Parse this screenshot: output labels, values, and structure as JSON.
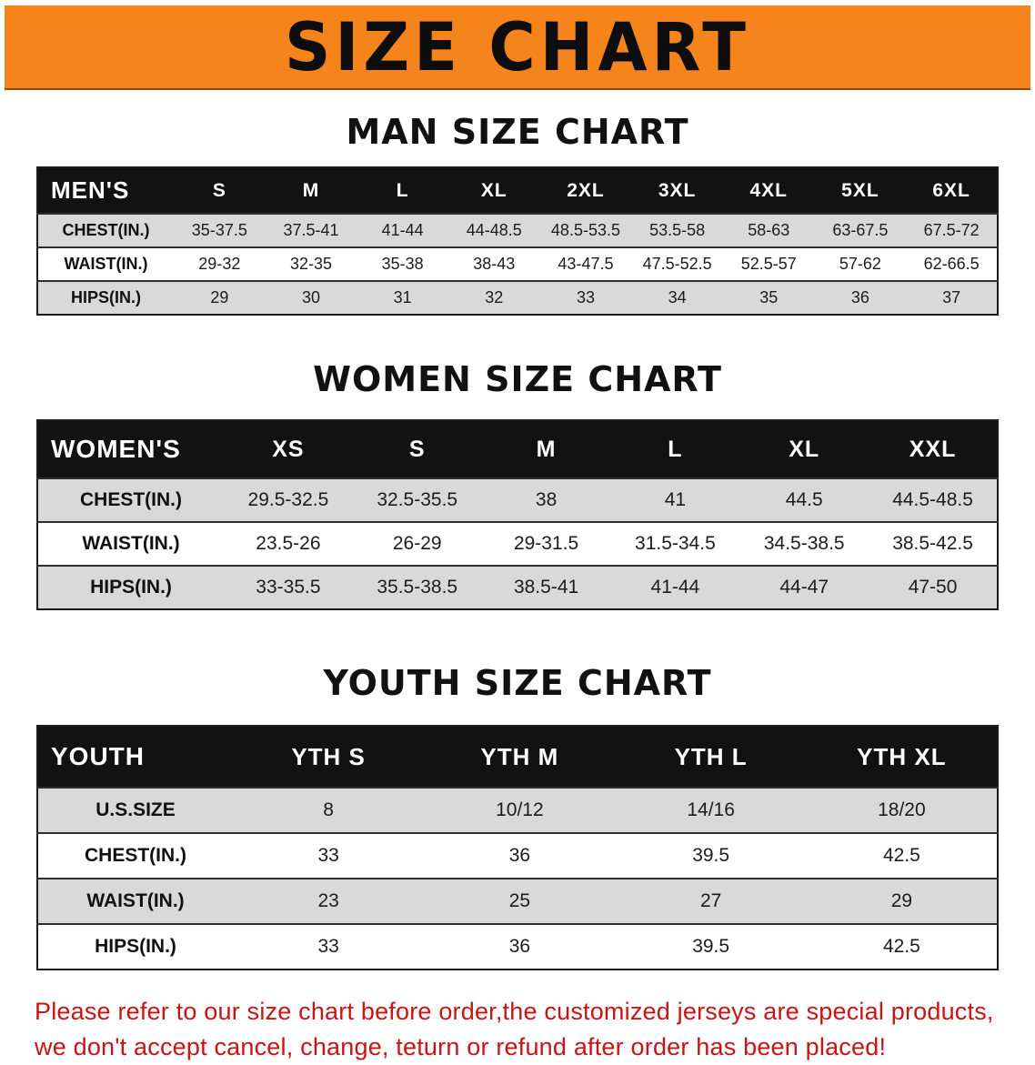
{
  "banner": {
    "title": "SIZE CHART"
  },
  "colors": {
    "banner_bg": "#f6841c",
    "header_bg": "#121212",
    "row_alt": "#d9d9d9",
    "note_red": "#c71414"
  },
  "sections": [
    {
      "heading": "MAN SIZE CHART",
      "table": {
        "header": [
          "MEN'S",
          "S",
          "M",
          "L",
          "XL",
          "2XL",
          "3XL",
          "4XL",
          "5XL",
          "6XL"
        ],
        "rows": [
          [
            "CHEST(IN.)",
            "35-37.5",
            "37.5-41",
            "41-44",
            "44-48.5",
            "48.5-53.5",
            "53.5-58",
            "58-63",
            "63-67.5",
            "67.5-72"
          ],
          [
            "WAIST(IN.)",
            "29-32",
            "32-35",
            "35-38",
            "38-43",
            "43-47.5",
            "47.5-52.5",
            "52.5-57",
            "57-62",
            "62-66.5"
          ],
          [
            "HIPS(IN.)",
            "29",
            "30",
            "31",
            "32",
            "33",
            "34",
            "35",
            "36",
            "37"
          ]
        ]
      }
    },
    {
      "heading": "WOMEN SIZE CHART",
      "table": {
        "header": [
          "WOMEN'S",
          "XS",
          "S",
          "M",
          "L",
          "XL",
          "XXL"
        ],
        "rows": [
          [
            "CHEST(IN.)",
            "29.5-32.5",
            "32.5-35.5",
            "38",
            "41",
            "44.5",
            "44.5-48.5"
          ],
          [
            "WAIST(IN.)",
            "23.5-26",
            "26-29",
            "29-31.5",
            "31.5-34.5",
            "34.5-38.5",
            "38.5-42.5"
          ],
          [
            "HIPS(IN.)",
            "33-35.5",
            "35.5-38.5",
            "38.5-41",
            "41-44",
            "44-47",
            "47-50"
          ]
        ]
      }
    },
    {
      "heading": "YOUTH SIZE CHART",
      "table": {
        "header": [
          "YOUTH",
          "YTH S",
          "YTH M",
          "YTH L",
          "YTH XL"
        ],
        "rows": [
          [
            "U.S.SIZE",
            "8",
            "10/12",
            "14/16",
            "18/20"
          ],
          [
            "CHEST(IN.)",
            "33",
            "36",
            "39.5",
            "42.5"
          ],
          [
            "WAIST(IN.)",
            "23",
            "25",
            "27",
            "29"
          ],
          [
            "HIPS(IN.)",
            "33",
            "36",
            "39.5",
            "42.5"
          ]
        ]
      }
    }
  ],
  "note": {
    "line1": "Please refer to our size chart before order,the customized jerseys are special products,",
    "line2": "we don't accept cancel, change, teturn or refund after order has been placed!"
  }
}
